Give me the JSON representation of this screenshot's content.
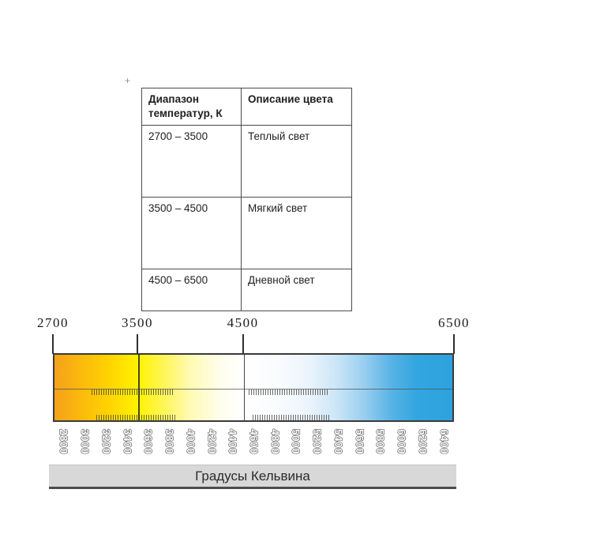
{
  "icons": {
    "table_anchor": "+"
  },
  "table": {
    "headers": [
      "Диапазон температур, К",
      "Описание цвета"
    ],
    "rows": [
      {
        "range": "2700 – 3500",
        "description": "Теплый свет"
      },
      {
        "range": "3500 – 4500",
        "description": "Мягкий свет"
      },
      {
        "range": "4500 – 6500",
        "description": "Дневной свет"
      }
    ]
  },
  "scale": {
    "min_k": 2700,
    "max_k": 6500,
    "top_labels": [
      "2700",
      "3500",
      "4500",
      "6500"
    ],
    "tick_labels": [
      "2800",
      "3000",
      "3200",
      "3400",
      "3600",
      "3800",
      "4000",
      "4200",
      "4400",
      "4600",
      "4800",
      "5000",
      "5200",
      "5400",
      "5600",
      "5800",
      "6000",
      "6200",
      "6400"
    ],
    "axis_title": "Градусы Кельвина",
    "gradient_stops": [
      [
        "0%",
        "#F5A11B"
      ],
      [
        "6%",
        "#FBB70D"
      ],
      [
        "13%",
        "#FFD100"
      ],
      [
        "21%",
        "#FFF200"
      ],
      [
        "28%",
        "#FFF65E"
      ],
      [
        "34%",
        "#FFFAB2"
      ],
      [
        "41%",
        "#FFFDE8"
      ],
      [
        "47%",
        "#FFFFFE"
      ],
      [
        "56%",
        "#FAFCFE"
      ],
      [
        "64%",
        "#EAF4FC"
      ],
      [
        "71%",
        "#CBE5F7"
      ],
      [
        "78%",
        "#97CEF0"
      ],
      [
        "85%",
        "#55B2E5"
      ],
      [
        "91%",
        "#33A6E0"
      ],
      [
        "100%",
        "#2CA2DE"
      ]
    ]
  }
}
